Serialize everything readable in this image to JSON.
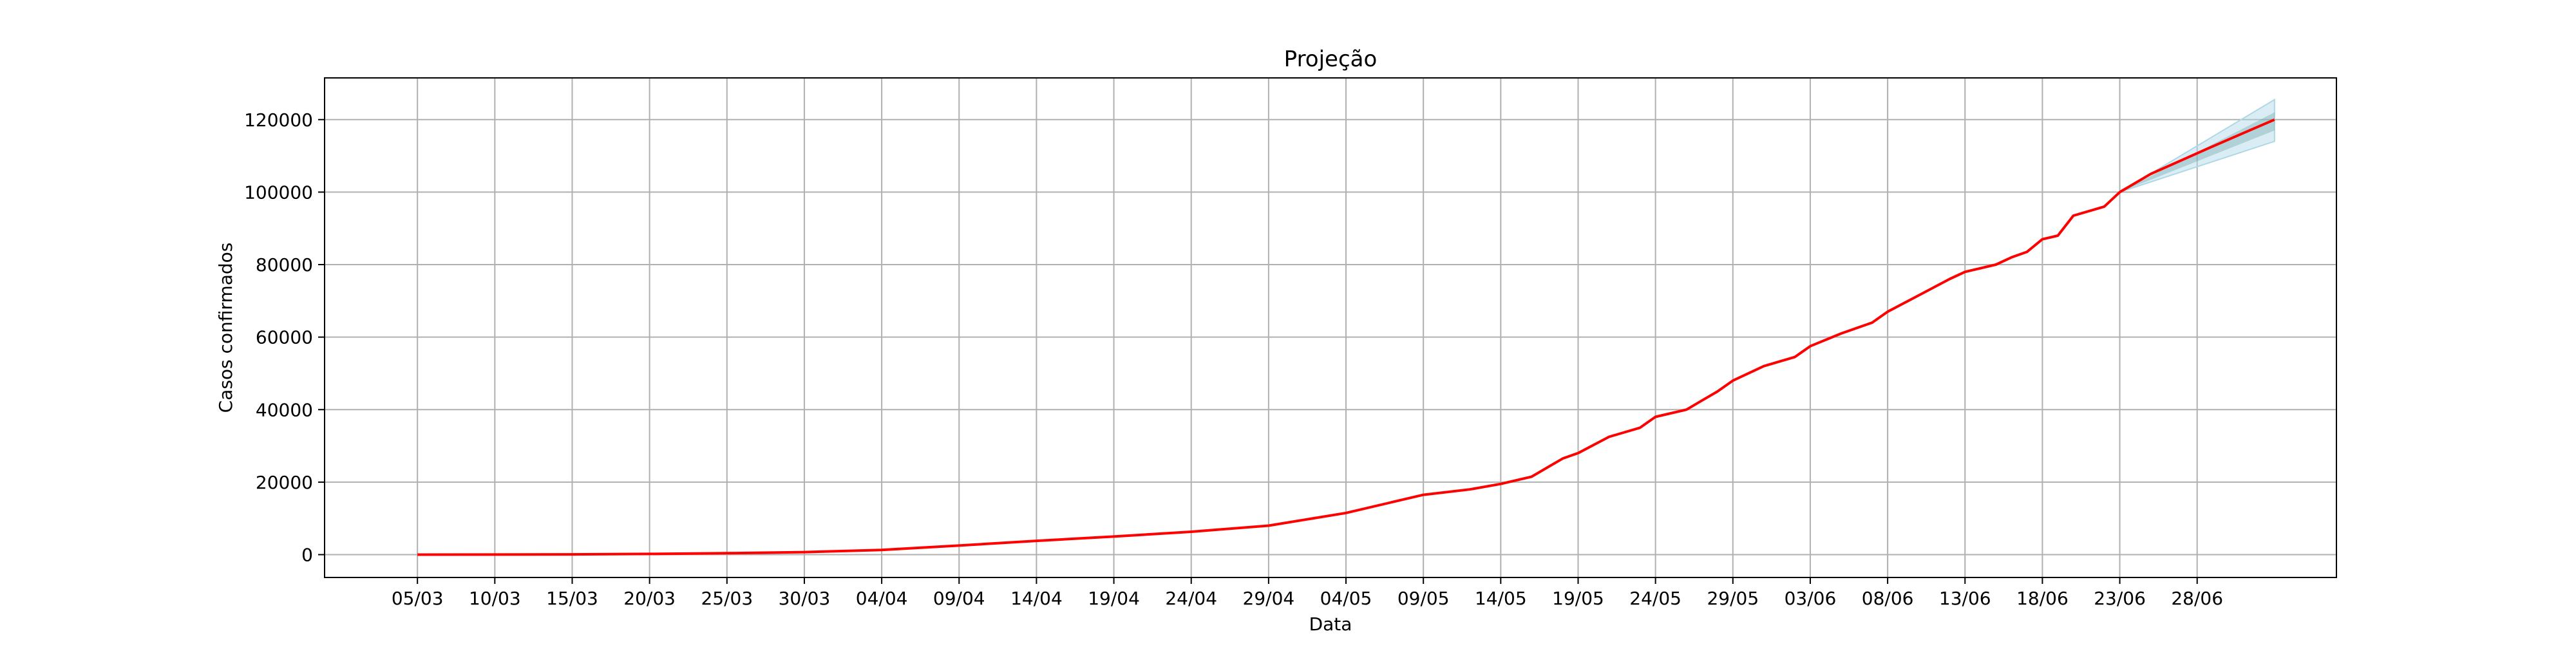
{
  "chart_data": {
    "type": "line",
    "title": "Projeção",
    "xlabel": "Data",
    "ylabel": "Casos confirmados",
    "x_tick_labels": [
      "05/03",
      "10/03",
      "15/03",
      "20/03",
      "25/03",
      "30/03",
      "04/04",
      "09/04",
      "14/04",
      "19/04",
      "24/04",
      "29/04",
      "04/05",
      "09/05",
      "14/05",
      "19/05",
      "24/05",
      "29/05",
      "03/06",
      "08/06",
      "13/06",
      "18/06",
      "23/06",
      "28/06"
    ],
    "y_tick_labels": [
      "0",
      "20000",
      "40000",
      "60000",
      "80000",
      "100000",
      "120000"
    ],
    "y_ticks": [
      0,
      20000,
      40000,
      60000,
      80000,
      100000,
      120000
    ],
    "ylim": [
      -6300,
      131500
    ],
    "grid": true,
    "date_axis": {
      "start": "05/03",
      "end": "03/07",
      "x_range_days": [
        -6,
        124
      ]
    },
    "series": [
      {
        "color": "#ff0000",
        "x": [
          "05/03",
          "10/03",
          "15/03",
          "20/03",
          "25/03",
          "30/03",
          "04/04",
          "09/04",
          "14/04",
          "19/04",
          "24/04",
          "29/04",
          "04/05",
          "09/05",
          "12/05",
          "14/05",
          "16/05",
          "18/05",
          "19/05",
          "21/05",
          "23/05",
          "24/05",
          "26/05",
          "27/05",
          "28/05",
          "29/05",
          "31/05",
          "02/06",
          "03/06",
          "05/06",
          "07/06",
          "08/06",
          "10/06",
          "12/06",
          "13/06",
          "15/06",
          "16/06",
          "17/06",
          "18/06",
          "19/06",
          "20/06",
          "22/06",
          "23/06",
          "25/06",
          "27/06",
          "29/06",
          "01/07",
          "03/07"
        ],
        "y": [
          0,
          20,
          80,
          200,
          400,
          700,
          1300,
          2500,
          3800,
          5000,
          6300,
          8000,
          11500,
          16500,
          18000,
          19500,
          21500,
          26500,
          28000,
          32500,
          35000,
          38000,
          40000,
          42500,
          45000,
          48000,
          52000,
          54500,
          57500,
          61000,
          64000,
          67000,
          71500,
          76000,
          78000,
          80000,
          82000,
          83500,
          87000,
          88000,
          93500,
          96000,
          100000,
          105000,
          108800,
          112600,
          116300,
          120000
        ]
      }
    ],
    "projection_band": {
      "color": "#add8e6",
      "x": [
        "23/06",
        "03/07"
      ],
      "lower": [
        100000,
        114000
      ],
      "inner_lower": [
        100000,
        117000
      ],
      "inner_upper": [
        100000,
        122000
      ],
      "upper": [
        100000,
        125500
      ]
    }
  }
}
